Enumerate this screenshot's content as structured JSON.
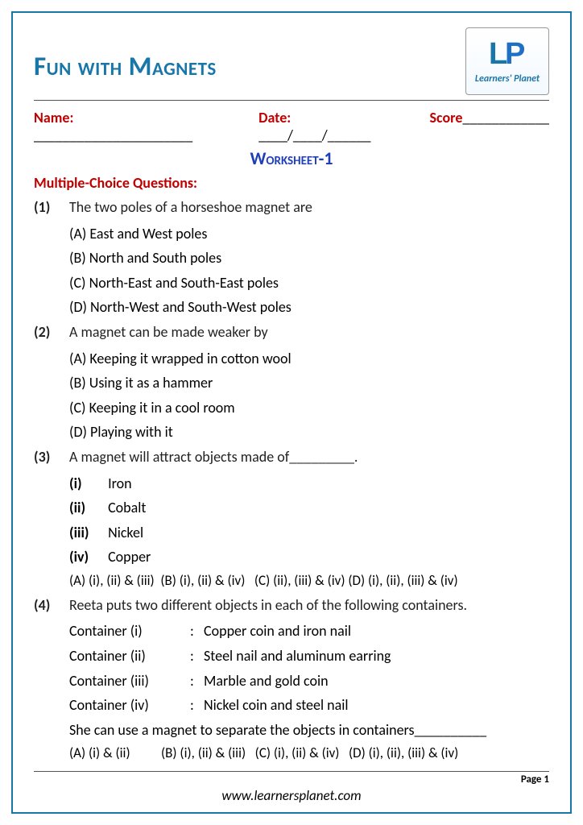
{
  "colors": {
    "border": "#1976a8",
    "title": "#1976a8",
    "heading_red": "#c00000",
    "worksheet_blue": "#1f3fb8",
    "text": "#222222"
  },
  "fonts": {
    "body": "Calibri",
    "title_size": 33,
    "body_size": 18
  },
  "header": {
    "title": "Fun with Magnets",
    "logo_text": "Learners' Planet"
  },
  "info": {
    "name_label": "Name:",
    "name_blank": "______________________",
    "date_label": "Date:",
    "date_blank": "____/____/______",
    "score_label": "Score",
    "score_blank": "____________"
  },
  "worksheet_title": "Worksheet-1",
  "section_heading": "Multiple-Choice Questions:",
  "questions": [
    {
      "num": "(1)",
      "text": "The two poles of a horseshoe magnet are",
      "options": [
        "(A) East and West poles",
        "(B) North and South poles",
        "(C) North-East and South-East poles",
        "(D) North-West and South-West poles"
      ]
    },
    {
      "num": "(2)",
      "text": "A magnet can be made weaker by",
      "options": [
        "(A) Keeping it wrapped in cotton wool",
        "(B) Using it as a hammer",
        "(C) Keeping it in a cool room",
        "(D) Playing with it"
      ]
    },
    {
      "num": "(3)",
      "text": "A magnet will attract objects made of_________.",
      "sub_items": [
        {
          "k": "(i)",
          "v": "Iron"
        },
        {
          "k": "(ii)",
          "v": "Cobalt"
        },
        {
          "k": "(iii)",
          "v": "Nickel"
        },
        {
          "k": "(iv)",
          "v": "Copper"
        }
      ],
      "combo": "(A) (i), (ii) & (iii)  (B) (i), (ii) & (iv)   (C) (ii), (iii) & (iv) (D) (i), (ii), (iii) & (iv)"
    },
    {
      "num": "(4)",
      "text": "Reeta puts two different objects in each of the following containers.",
      "containers": [
        {
          "label": "Container (i)",
          "val": "Copper coin and iron nail"
        },
        {
          "label": "Container (ii)",
          "val": "Steel nail and aluminum earring"
        },
        {
          "label": "Container (iii)",
          "val": "Marble and gold coin"
        },
        {
          "label": "Container (iv)",
          "val": "Nickel coin and steel nail"
        }
      ],
      "tail": "She can use a magnet to separate the objects in containers__________",
      "combo": "(A) (i) & (ii)          (B) (i), (ii) & (iii)   (C) (i), (ii) & (iv)   (D) (i), (ii), (iii) & (iv)"
    }
  ],
  "footer": {
    "page": "Page 1",
    "website": "www.learnersplanet.com"
  }
}
